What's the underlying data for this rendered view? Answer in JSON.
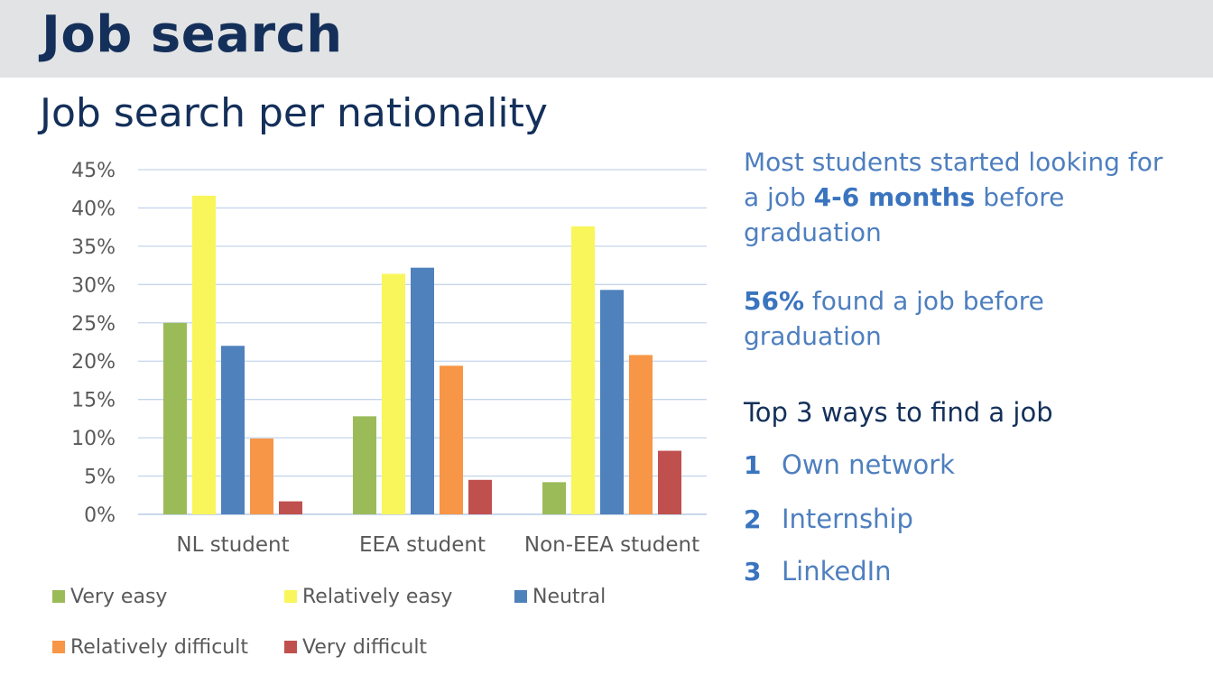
{
  "header": {
    "title": "Job search"
  },
  "subtitle": "Job search per nationality",
  "colors": {
    "very_easy": "#9bbb59",
    "relatively_easy": "#f8f65a",
    "neutral": "#4f81bd",
    "relatively_difficult": "#f79646",
    "very_difficult": "#c0504d",
    "header_text": "#14305a",
    "accent_text": "#4e7fbf"
  },
  "chart_data": {
    "type": "bar",
    "categories": [
      "NL student",
      "EEA student",
      "Non-EEA student"
    ],
    "series": [
      {
        "name": "Very easy",
        "values": [
          25,
          12.8,
          4.2
        ]
      },
      {
        "name": "Relatively easy",
        "values": [
          41.6,
          31.4,
          37.6
        ]
      },
      {
        "name": "Neutral",
        "values": [
          22,
          32.2,
          29.3
        ]
      },
      {
        "name": "Relatively difficult",
        "values": [
          9.9,
          19.4,
          20.8
        ]
      },
      {
        "name": "Very difficult",
        "values": [
          1.7,
          4.5,
          8.3
        ]
      }
    ],
    "ylim": [
      0,
      45
    ],
    "yticks": [
      "0%",
      "5%",
      "10%",
      "15%",
      "20%",
      "25%",
      "30%",
      "35%",
      "40%",
      "45%"
    ],
    "grid": true,
    "legend_position": "bottom"
  },
  "sidebar": {
    "p1_pre": "Most students started looking for a job ",
    "p1_bold": "4-6 months",
    "p1_post": " before graduation",
    "p2_bold": "56%",
    "p2_post": " found a job before graduation",
    "ways_title": "Top 3 ways to find a job",
    "ways": [
      {
        "num": "1",
        "label": "Own network"
      },
      {
        "num": "2",
        "label": "Internship"
      },
      {
        "num": "3",
        "label": "LinkedIn"
      }
    ]
  }
}
